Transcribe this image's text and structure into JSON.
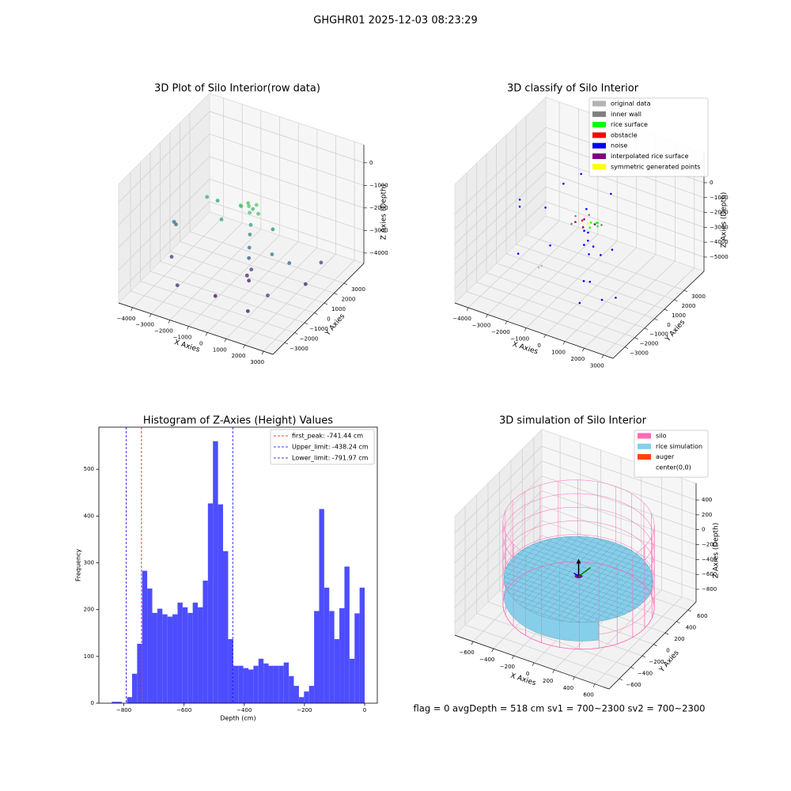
{
  "title": "GHGHR01 2025-12-03 08:23:29",
  "footer": "flag = 0     avgDepth = 518 cm  sv1 = 700~2300  sv2 = 700~2300",
  "chart_data": [
    {
      "type": "scatter3d",
      "title": "3D Plot of Silo Interior(row data)",
      "xlabel": "X Axies",
      "ylabel": "Y Axies",
      "zlabel": "Z Axies (Depth)",
      "colormap": "viridis",
      "xlim": [
        -4740,
        3500
      ],
      "ylim": [
        -4200,
        5000
      ],
      "zlim": [
        -4460,
        800
      ],
      "xticks": [
        {
          "value": -4000,
          "label": "−4000"
        },
        {
          "value": -3000,
          "label": "−3000"
        },
        {
          "value": -2000,
          "label": "−2000"
        },
        {
          "value": -1000,
          "label": "−1000"
        },
        0,
        1000,
        2000,
        3000
      ],
      "yticks": [
        {
          "value": -3000,
          "label": "−3000"
        },
        {
          "value": -2000,
          "label": "−2000"
        },
        {
          "value": -1000,
          "label": "−1000"
        },
        0,
        1000,
        2000,
        3000
      ],
      "zticks": [
        0,
        {
          "value": -1000,
          "label": "−1000"
        },
        {
          "value": -2000,
          "label": "−2000"
        },
        {
          "value": -3000,
          "label": "−3000"
        },
        {
          "value": -4000,
          "label": "−4000"
        }
      ],
      "x": [
        0,
        300,
        -300,
        200,
        -200,
        500,
        -500,
        0,
        100,
        0,
        50,
        0,
        100,
        0,
        -100,
        -2500,
        -2200,
        -1200,
        800,
        1500,
        2000,
        -4000,
        -4000,
        -3600,
        -2500,
        1800,
        2500,
        1000,
        -1000,
        2800
      ],
      "y": [
        0,
        200,
        -200,
        -300,
        300,
        0,
        100,
        400,
        0,
        100,
        -50,
        0,
        50,
        0,
        0,
        500,
        1000,
        -500,
        900,
        -500,
        300,
        0,
        200,
        -1000,
        -2500,
        -1500,
        1000,
        -2000,
        -1500,
        2000
      ],
      "z": [
        -700,
        -650,
        -700,
        -800,
        -750,
        -900,
        -850,
        -1000,
        -1500,
        -2000,
        -2500,
        -3000,
        -3500,
        -4000,
        -3800,
        -1200,
        -1500,
        -1400,
        -1900,
        -2200,
        -2800,
        -2500,
        -2700,
        -3500,
        -3800,
        -3500,
        -3900,
        -4200,
        -4300,
        -3300
      ]
    },
    {
      "type": "scatter3d",
      "title": "3D classify of Silo Interior",
      "xlabel": "X Axies",
      "ylabel": "Y Axies",
      "zlabel": "Z Axies (Depth)",
      "legend": "upper right",
      "xlim": [
        -4700,
        3500
      ],
      "ylim": [
        -4200,
        5000
      ],
      "zlim": [
        -5960,
        2020
      ],
      "xticks": [
        {
          "value": -4000,
          "label": "−4000"
        },
        {
          "value": -3000,
          "label": "−3000"
        },
        {
          "value": -2000,
          "label": "−2000"
        },
        {
          "value": -1000,
          "label": "−1000"
        },
        0,
        1000,
        2000,
        3000
      ],
      "yticks": [
        {
          "value": -3000,
          "label": "−3000"
        },
        {
          "value": -2000,
          "label": "−2000"
        },
        {
          "value": -1000,
          "label": "−1000"
        },
        0,
        1000,
        2000,
        3000
      ],
      "zticks": [
        0,
        {
          "value": -1000,
          "label": "−1000"
        },
        {
          "value": -2000,
          "label": "−2000"
        },
        {
          "value": -3000,
          "label": "−3000"
        },
        {
          "value": -4000,
          "label": "−4000"
        },
        {
          "value": -5000,
          "label": "−5000"
        }
      ],
      "series": [
        {
          "name": "original data",
          "color": "#b3b3b3",
          "x": [
            -2200,
            -2300
          ],
          "y": [
            -300,
            -400
          ],
          "z": [
            -4800,
            -4900
          ]
        },
        {
          "name": "inner wall",
          "color": "#808080",
          "x": [
            -700,
            -600,
            700,
            -200
          ],
          "y": [
            200,
            -400,
            100,
            600
          ],
          "z": [
            -1100,
            -1200,
            -1000,
            -1050
          ]
        },
        {
          "name": "rice surface",
          "color": "#00ff00",
          "x": [
            200,
            400,
            600,
            300,
            500
          ],
          "y": [
            0,
            200,
            -100,
            -300,
            100
          ],
          "z": [
            -1000,
            -1050,
            -1000,
            -1100,
            -950
          ]
        },
        {
          "name": "obstacle",
          "color": "#ff0000",
          "x": [
            -300
          ],
          "y": [
            100
          ],
          "z": [
            -1150
          ]
        },
        {
          "name": "noise",
          "color": "#0000ff",
          "x": [
            -4000,
            -3900,
            -2800,
            -2500,
            -2100,
            -1500,
            -800,
            -300,
            200,
            600,
            900,
            1200,
            1800,
            2000,
            -200,
            100,
            300,
            -100,
            0,
            150,
            500,
            -2000
          ],
          "y": [
            1000,
            800,
            -1500,
            2500,
            3500,
            -800,
            1500,
            3000,
            -200,
            -1500,
            -2500,
            200,
            -2000,
            -1000,
            100,
            -100,
            50,
            300,
            -300,
            0,
            400,
            -300
          ],
          "z": [
            -2000,
            -2300,
            -3500,
            -1200,
            -1000,
            -2800,
            -1500,
            -1200,
            -3000,
            -3800,
            -4500,
            -2500,
            -4200,
            -4600,
            -1800,
            -2200,
            -2600,
            -2000,
            -2400,
            -5000,
            -3300,
            -800
          ]
        },
        {
          "name": "interpolated rice surface",
          "color": "#800080",
          "x": [
            -500,
            -300,
            0,
            300
          ],
          "y": [
            -200,
            300,
            -400,
            200
          ],
          "z": [
            -1150,
            -1200,
            -1150,
            -1200
          ]
        },
        {
          "name": "symmetric generated points",
          "color": "#ffff00",
          "x": [
            100
          ],
          "y": [
            -100
          ],
          "z": [
            -1050
          ]
        }
      ]
    },
    {
      "type": "histogram",
      "title": "Histogram of Z-Axies (Height) Values",
      "xlabel": "Depth (cm)",
      "ylabel": "Frequency",
      "color": "#4d4dff",
      "legend": "upper right",
      "xlim": [
        -883,
        42
      ],
      "ylim": [
        0,
        590
      ],
      "xticks": [
        {
          "value": -800,
          "label": "−800"
        },
        {
          "value": -600,
          "label": "−600"
        },
        {
          "value": -400,
          "label": "−400"
        },
        {
          "value": -200,
          "label": "−200"
        },
        0
      ],
      "yticks": [
        0,
        100,
        200,
        300,
        400,
        500
      ],
      "bins": [
        -840,
        -823.2,
        -806.4,
        -789.6,
        -772.8,
        -756,
        -739.2,
        -722.4,
        -705.6,
        -688.8,
        -672,
        -655.2,
        -638.4,
        -621.6,
        -604.8,
        -588,
        -571.2,
        -554.4,
        -537.6,
        -520.8,
        -504,
        -487.2,
        -470.4,
        -453.6,
        -436.8,
        -420,
        -403.2,
        -386.4,
        -369.6,
        -352.8,
        -336,
        -319.2,
        -302.4,
        -285.6,
        -268.8,
        -252,
        -235.2,
        -218.4,
        -201.6,
        -184.8,
        -168,
        -151.2,
        -134.4,
        -117.6,
        -100.8,
        -84,
        -67.2,
        -50.4,
        -33.6,
        -16.8,
        0
      ],
      "values": [
        3,
        3,
        0,
        13,
        63,
        127,
        283,
        245,
        193,
        202,
        190,
        185,
        190,
        215,
        205,
        193,
        215,
        205,
        262,
        427,
        560,
        425,
        325,
        137,
        80,
        80,
        75,
        72,
        80,
        95,
        85,
        80,
        80,
        80,
        87,
        58,
        37,
        13,
        25,
        37,
        197,
        415,
        247,
        197,
        137,
        203,
        292,
        95,
        192,
        247
      ],
      "lines": [
        {
          "name": "first_peak: -741.44 cm",
          "value": -741.44,
          "color": "#ff0000"
        },
        {
          "name": "Upper_limit: -438.24 cm",
          "value": -438.24,
          "color": "#0000ff"
        },
        {
          "name": "Lower_limit: -791.97 cm",
          "value": -791.97,
          "color": "#0000ff"
        }
      ]
    },
    {
      "type": "surface3d",
      "title": "3D simulation of Silo Interior",
      "xlabel": "X Axies",
      "ylabel": "Y Axies",
      "zlabel": "Z Axies (Depth)",
      "legend": "upper right",
      "xlim": [
        -780,
        740
      ],
      "ylim": [
        -780,
        740
      ],
      "zlim": [
        -970,
        624
      ],
      "xticks": [
        {
          "value": -600,
          "label": "−600"
        },
        {
          "value": -400,
          "label": "−400"
        },
        {
          "value": -200,
          "label": "−200"
        },
        0,
        200,
        400,
        600
      ],
      "yticks": [
        {
          "value": -600,
          "label": "−600"
        },
        {
          "value": -400,
          "label": "−400"
        },
        {
          "value": -200,
          "label": "−200"
        },
        0,
        200,
        400,
        600
      ],
      "zticks": [
        400,
        200,
        0,
        {
          "value": -200,
          "label": "−200"
        },
        {
          "value": -400,
          "label": "−400"
        },
        {
          "value": -600,
          "label": "−600"
        },
        {
          "value": -800,
          "label": "−800"
        }
      ],
      "series": [
        {
          "name": "silo",
          "color": "#ff69b4",
          "radius": 650,
          "top": 300,
          "bottom": -800
        },
        {
          "name": "rice simulation",
          "color": "#87ceeb",
          "radius": 640,
          "top": -450,
          "bottom": -700
        },
        {
          "name": "auger",
          "color": "#ff4500",
          "x": 0,
          "y": 0
        },
        {
          "name": "center(0,0)",
          "color": "#ffffff"
        }
      ]
    }
  ]
}
